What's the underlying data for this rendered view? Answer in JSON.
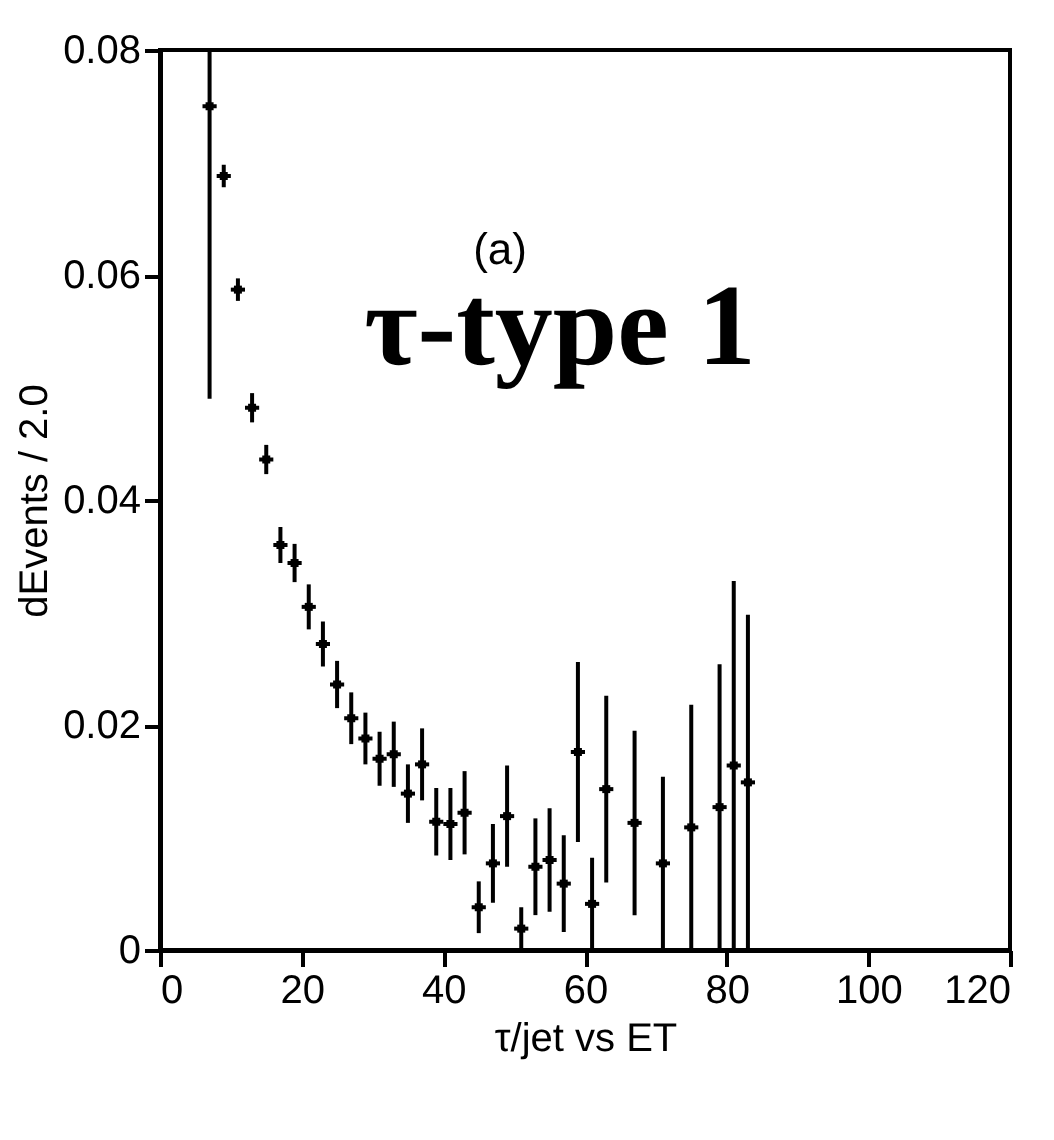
{
  "chart_data": {
    "type": "scatter",
    "xlabel": "τ/jet vs ET",
    "ylabel": "dEvents / 2.0",
    "annotations": [
      "(a)",
      "τ-type 1"
    ],
    "x": [
      7,
      9,
      11,
      13,
      15,
      17,
      19,
      21,
      23,
      25,
      27,
      29,
      31,
      33,
      35,
      37,
      39,
      41,
      43,
      45,
      47,
      49,
      51,
      53,
      55,
      57,
      59,
      61,
      63,
      67,
      71,
      75,
      79,
      81,
      83
    ],
    "values": [
      0.075,
      0.0688,
      0.0587,
      0.0482,
      0.0436,
      0.036,
      0.0344,
      0.0305,
      0.0272,
      0.0236,
      0.0206,
      0.0188,
      0.017,
      0.0174,
      0.0139,
      0.0165,
      0.0114,
      0.0112,
      0.0122,
      0.0038,
      0.0077,
      0.0119,
      0.0019,
      0.0074,
      0.008,
      0.0059,
      0.0176,
      0.0041,
      0.0143,
      0.0113,
      0.0077,
      0.0109,
      0.0127,
      0.0164,
      0.0149
    ],
    "errors": [
      [
        0.049,
        0.08
      ],
      0.001,
      0.001,
      0.0013,
      0.0013,
      0.0016,
      0.0017,
      0.002,
      0.002,
      0.0021,
      0.0023,
      0.0023,
      0.0024,
      0.0029,
      0.0026,
      0.0032,
      0.003,
      0.0032,
      0.0037,
      0.0023,
      0.0035,
      0.0045,
      0.0019,
      0.0043,
      0.0046,
      0.0043,
      0.008,
      0.0041,
      0.0083,
      0.0082,
      0.0077,
      0.0109,
      0.0127,
      0.0164,
      0.0149
    ],
    "xerrors": [
      1,
      1,
      1,
      1,
      1,
      1,
      1,
      1,
      1,
      1,
      1,
      1,
      1,
      1,
      1,
      1,
      1,
      1,
      1,
      1,
      1,
      1,
      1,
      1,
      1,
      1,
      1,
      1,
      1,
      1,
      1,
      1,
      1,
      1,
      1
    ],
    "color": "#000000",
    "marker": "square",
    "xlim": [
      0,
      120
    ],
    "xticks": [
      0,
      20,
      40,
      60,
      80,
      100,
      120
    ],
    "ylim": [
      0,
      0.08
    ],
    "yticks": [
      0,
      0.02,
      0.04,
      0.06,
      0.08
    ],
    "grid": false
  }
}
